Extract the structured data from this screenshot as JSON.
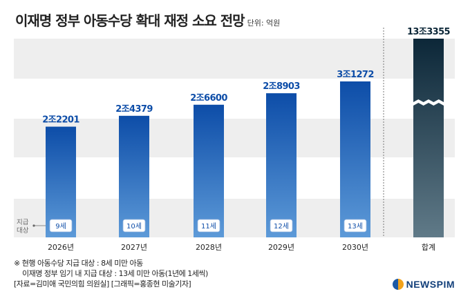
{
  "header": {
    "title": "이재명 정부 아동수당 확대 재정 소요 전망",
    "unit": "단위: 억원"
  },
  "colors": {
    "bar_top": "#0d4da8",
    "bar_bottom": "#5d9ad8",
    "total_top": "#0c2738",
    "total_bottom": "#607a88",
    "value_label": "#0d4da8",
    "total_label": "#0c2738",
    "band": "#eeeeee"
  },
  "chart_data": {
    "type": "bar",
    "categories": [
      "2026년",
      "2027년",
      "2028년",
      "2029년",
      "2030년",
      "합계"
    ],
    "values": [
      22201,
      24379,
      26600,
      28903,
      31272,
      133355
    ],
    "value_labels": [
      "2조2201",
      "2조4379",
      "2조6600",
      "2조8903",
      "3조1272",
      "13조3355"
    ],
    "age_labels": [
      "9세",
      "10세",
      "11세",
      "12세",
      "13세"
    ],
    "age_axis_label": "지급\n대상",
    "axis_break": true,
    "ylim": [
      0,
      35000
    ],
    "grid": false
  },
  "notes": {
    "line1": "※ 현행 아동수당 지급 대상 : 8세 미만 아동",
    "line2": "이재명 정부 임기 내 지급 대상 : 13세 미만 아동(1년에 1세씩)",
    "line3": "[자료=김미애 국민의힘 의원실] [그래픽=홍종현 미술기자]"
  },
  "logo": {
    "text": "NEWSPIM"
  }
}
